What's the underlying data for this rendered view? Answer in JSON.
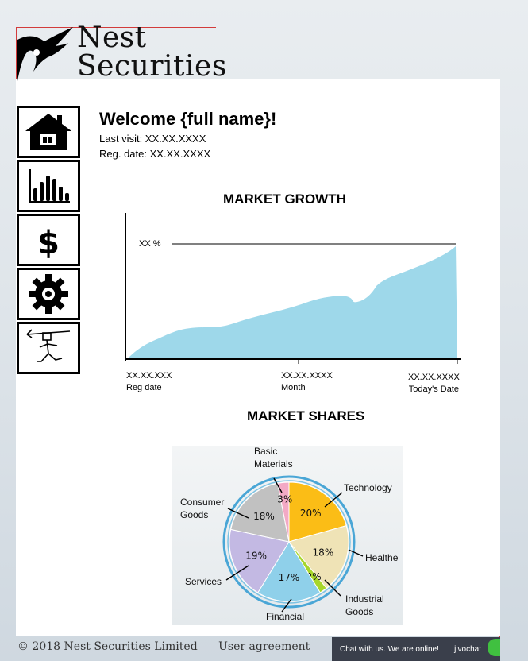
{
  "brand": {
    "line1": "Nest",
    "line2": "Securities"
  },
  "nav": [
    {
      "name": "home",
      "icon": "house-icon"
    },
    {
      "name": "stats",
      "icon": "bar-chart-icon"
    },
    {
      "name": "funds",
      "icon": "dollar-icon"
    },
    {
      "name": "settings",
      "icon": "gear-icon"
    },
    {
      "name": "logout",
      "icon": "running-figure-icon"
    }
  ],
  "welcome": {
    "title": "Welcome {full name}!",
    "last_visit": "Last visit: XX.XX.XXXX",
    "reg_date": "Reg. date: XX.XX.XXXX"
  },
  "growth": {
    "title": "MARKET GROWTH",
    "percent_label": "XX %",
    "ticks": [
      {
        "value": "XX.XX.XXX",
        "label": "Reg date"
      },
      {
        "value": "XX.XX.XXXX",
        "label": "Month"
      },
      {
        "value": "XX.XX.XXXX",
        "label": "Today's Date"
      }
    ],
    "color": "#9ed8ea"
  },
  "chart_data": {
    "type": "pie",
    "title": "MARKET SHARES",
    "slices": [
      {
        "name": "Technology",
        "value": 20,
        "label": "20%",
        "color": "#fbbd16"
      },
      {
        "name": "Healthe",
        "value": 18,
        "label": "18%",
        "color": "#efe3b6"
      },
      {
        "name": "Industrial Goods",
        "value": 2,
        "label": "2%",
        "color": "#a7d62a"
      },
      {
        "name": "Financial",
        "value": 17,
        "label": "17%",
        "color": "#8fd0ea"
      },
      {
        "name": "Services",
        "value": 19,
        "label": "19%",
        "color": "#c3b9e3"
      },
      {
        "name": "Consumer Goods",
        "value": 18,
        "label": "18%",
        "color": "#c1c1c1"
      },
      {
        "name": "Basic Materials",
        "value": 3,
        "label": "3%",
        "color": "#f3a9c5"
      }
    ],
    "category_labels": {
      "basic": [
        "Basic",
        "Materials"
      ],
      "technology": [
        "Technology"
      ],
      "consumer": [
        "Consumer",
        "Goods"
      ],
      "healthe": [
        "Healthe"
      ],
      "services": [
        "Services"
      ],
      "industrial": [
        "Industrial",
        "Goods"
      ],
      "financial": [
        "Financial"
      ]
    }
  },
  "footer": {
    "copyright": "© 2018 Nest Securities Limited",
    "agreement": "User agreement"
  },
  "chat": {
    "message": "Chat with us. We are online!",
    "brand": "jivochat"
  }
}
